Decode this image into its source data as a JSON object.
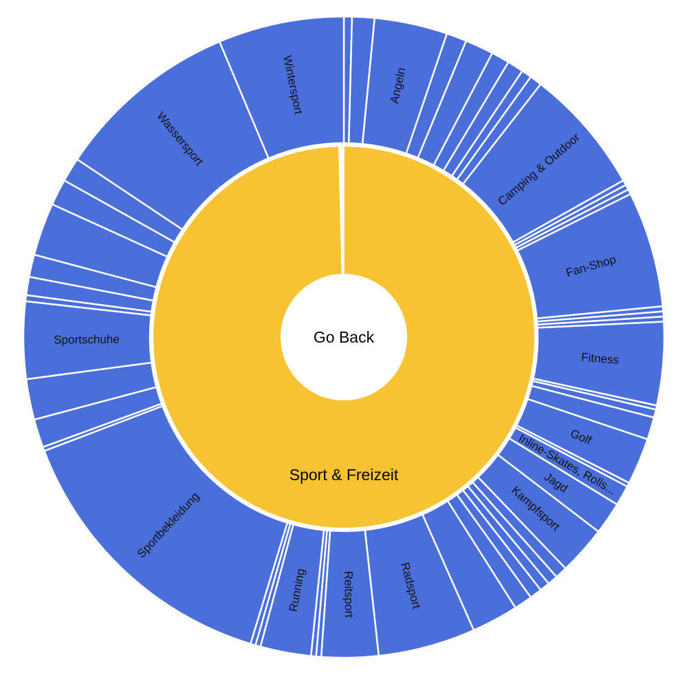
{
  "chart_data": {
    "type": "sunburst",
    "center_label": "Go Back",
    "root": {
      "name": "Sport & Freizeit",
      "color": "#F8C333",
      "share": 99.6
    },
    "outer_color": "#4A6FDB",
    "outer_segments_clockwise_from_top": [
      {
        "name": "",
        "share": 0.4
      },
      {
        "name": "",
        "share": 1.1
      },
      {
        "name": "Angeln",
        "share": 3.6
      },
      {
        "name": "",
        "share": 1.0
      },
      {
        "name": "",
        "share": 1.4
      },
      {
        "name": "",
        "share": 0.9
      },
      {
        "name": "",
        "share": 0.8
      },
      {
        "name": "",
        "share": 0.5
      },
      {
        "name": "",
        "share": 0.6
      },
      {
        "name": "Camping & Outdoor",
        "share": 6.2
      },
      {
        "name": "",
        "share": 0.25
      },
      {
        "name": "",
        "share": 0.25
      },
      {
        "name": "",
        "share": 0.25
      },
      {
        "name": "Fan-Shop",
        "share": 5.7
      },
      {
        "name": "",
        "share": 0.25
      },
      {
        "name": "",
        "share": 0.25
      },
      {
        "name": "",
        "share": 0.25
      },
      {
        "name": "Fitness",
        "share": 4.1
      },
      {
        "name": "",
        "share": 0.2
      },
      {
        "name": "",
        "share": 0.4
      },
      {
        "name": "",
        "share": 1.1
      },
      {
        "name": "Golf",
        "share": 2.3
      },
      {
        "name": "",
        "share": 0.2
      },
      {
        "name": "Inline-Skates, Rolls...",
        "share": 1.0
      },
      {
        "name": "Jagd",
        "share": 1.6
      },
      {
        "name": "Kampfsport",
        "share": 2.4
      },
      {
        "name": "",
        "share": 0.6
      },
      {
        "name": "",
        "share": 0.5
      },
      {
        "name": "",
        "share": 0.5
      },
      {
        "name": "",
        "share": 0.6
      },
      {
        "name": "",
        "share": 0.9
      },
      {
        "name": "",
        "share": 2.3
      },
      {
        "name": "Radsport",
        "share": 4.8
      },
      {
        "name": "Reitsport",
        "share": 2.8
      },
      {
        "name": "",
        "share": 0.25
      },
      {
        "name": "",
        "share": 0.25
      },
      {
        "name": "Running",
        "share": 2.5
      },
      {
        "name": "",
        "share": 0.25
      },
      {
        "name": "",
        "share": 0.25
      },
      {
        "name": "Sportbekleidung",
        "share": 14.2
      },
      {
        "name": "",
        "share": 0.2
      },
      {
        "name": "",
        "share": 1.4
      },
      {
        "name": "",
        "share": 2.0
      },
      {
        "name": "Sportschuhe",
        "share": 3.8
      },
      {
        "name": "",
        "share": 0.3
      },
      {
        "name": "",
        "share": 0.9
      },
      {
        "name": "",
        "share": 1.1
      },
      {
        "name": "",
        "share": 2.6
      },
      {
        "name": "",
        "share": 1.3
      },
      {
        "name": "",
        "share": 1.2
      },
      {
        "name": "Wassersport",
        "share": 9.1
      },
      {
        "name": "Wintersport",
        "share": 6.2
      }
    ]
  }
}
